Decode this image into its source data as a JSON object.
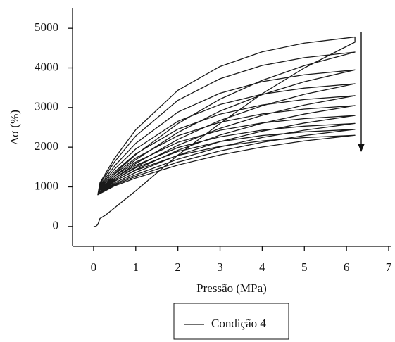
{
  "chart_data": {
    "type": "line",
    "xlabel": "Pressão (MPa)",
    "ylabel": "Δσ (%)",
    "xlim": [
      -0.5,
      7
    ],
    "ylim": [
      -500,
      5500
    ],
    "xticks": [
      0,
      1,
      2,
      3,
      4,
      5,
      6,
      7
    ],
    "yticks": [
      0,
      1000,
      2000,
      3000,
      4000,
      5000
    ],
    "legend": "bottom",
    "series": [
      {
        "name": "Condição 4",
        "color": "#1a1a1a",
        "x": [
          0,
          0.05,
          0.1,
          0.15,
          0.3,
          1,
          2,
          3,
          4,
          5,
          6.2,
          6.2,
          5,
          4,
          3,
          2,
          1,
          0.5,
          0.15,
          0.1,
          0.5,
          1,
          2,
          3,
          4,
          5,
          6.2,
          5,
          4,
          3,
          2,
          1,
          0.5,
          0.15,
          0.1,
          0.5,
          1,
          2,
          3,
          4,
          5,
          6.2,
          5,
          4,
          3,
          2,
          1,
          0.5,
          0.15,
          0.1,
          0.5,
          1,
          2,
          3,
          4,
          5,
          6.2,
          5,
          4,
          3,
          2,
          1,
          0.5,
          0.15,
          0.1,
          0.5,
          1,
          2,
          3,
          4,
          5,
          6.2,
          5,
          4,
          3,
          2,
          1,
          0.5,
          0.15,
          0.1,
          0.5,
          1,
          2,
          3,
          4,
          5,
          6.2,
          5,
          4,
          3,
          2,
          1,
          0.5,
          0.15,
          0.1,
          0.5,
          1,
          2,
          3,
          4,
          5,
          6.2,
          5,
          4,
          3,
          2,
          1,
          0.5,
          0.15,
          0.1,
          0.5,
          1,
          2,
          3,
          4,
          5,
          6.2,
          5,
          4,
          3,
          2,
          1,
          0.5,
          0.15,
          0.1,
          0.5,
          1,
          2,
          3,
          4,
          5,
          6.2,
          5,
          4,
          3,
          2,
          1,
          0.5,
          0.15,
          0.1,
          0.5,
          1,
          2,
          3,
          4,
          5,
          6.2,
          5,
          4,
          3,
          2,
          1,
          0.5,
          0.15,
          0.1
        ],
        "values": [
          0,
          0,
          50,
          200,
          300,
          900,
          1800,
          2600,
          3350,
          4000,
          4650,
          4780,
          4625,
          4406,
          4036,
          3435,
          2440,
          1723,
          1102,
          800,
          1340,
          1812,
          2596,
          3212,
          3687,
          4058,
          4400,
          4260,
          4062,
          3727,
          3183,
          2283,
          1635,
          1074,
          800,
          1273,
          1685,
          2372,
          2911,
          3326,
          3651,
          3950,
          3827,
          3654,
          3361,
          2885,
          2098,
          1531,
          1039,
          800,
          1220,
          1587,
          2197,
          2676,
          3046,
          3334,
          3600,
          3491,
          3337,
          3076,
          2654,
          1954,
          1450,
          1013,
          800,
          1175,
          1503,
          2048,
          2475,
          2805,
          3063,
          3300,
          3203,
          3065,
          2833,
          2455,
          1830,
          1380,
          990,
          800,
          1138,
          1432,
          1923,
          2308,
          2605,
          2836,
          3050,
          2962,
          2839,
          2629,
          2290,
          1727,
          1322,
          971,
          800,
          1100,
          1362,
          1798,
          2140,
          2404,
          2610,
          2800,
          2722,
          2612,
          2426,
          2124,
          1624,
          1264,
          952,
          800,
          1070,
          1306,
          1698,
          2006,
          2244,
          2429,
          2600,
          2530,
          2431,
          2263,
          1992,
          1542,
          1218,
          937,
          800,
          1048,
          1264,
          1623,
          1906,
          2123,
          2293,
          2450,
          2386,
          2295,
          2141,
          1892,
          1480,
          1183,
          925,
          800,
          1025,
          1222,
          1549,
          1805,
          2003,
          2158,
          2300,
          2242,
          2159,
          2020,
          1793,
          1418,
          1148,
          914,
          800
        ]
      }
    ]
  }
}
